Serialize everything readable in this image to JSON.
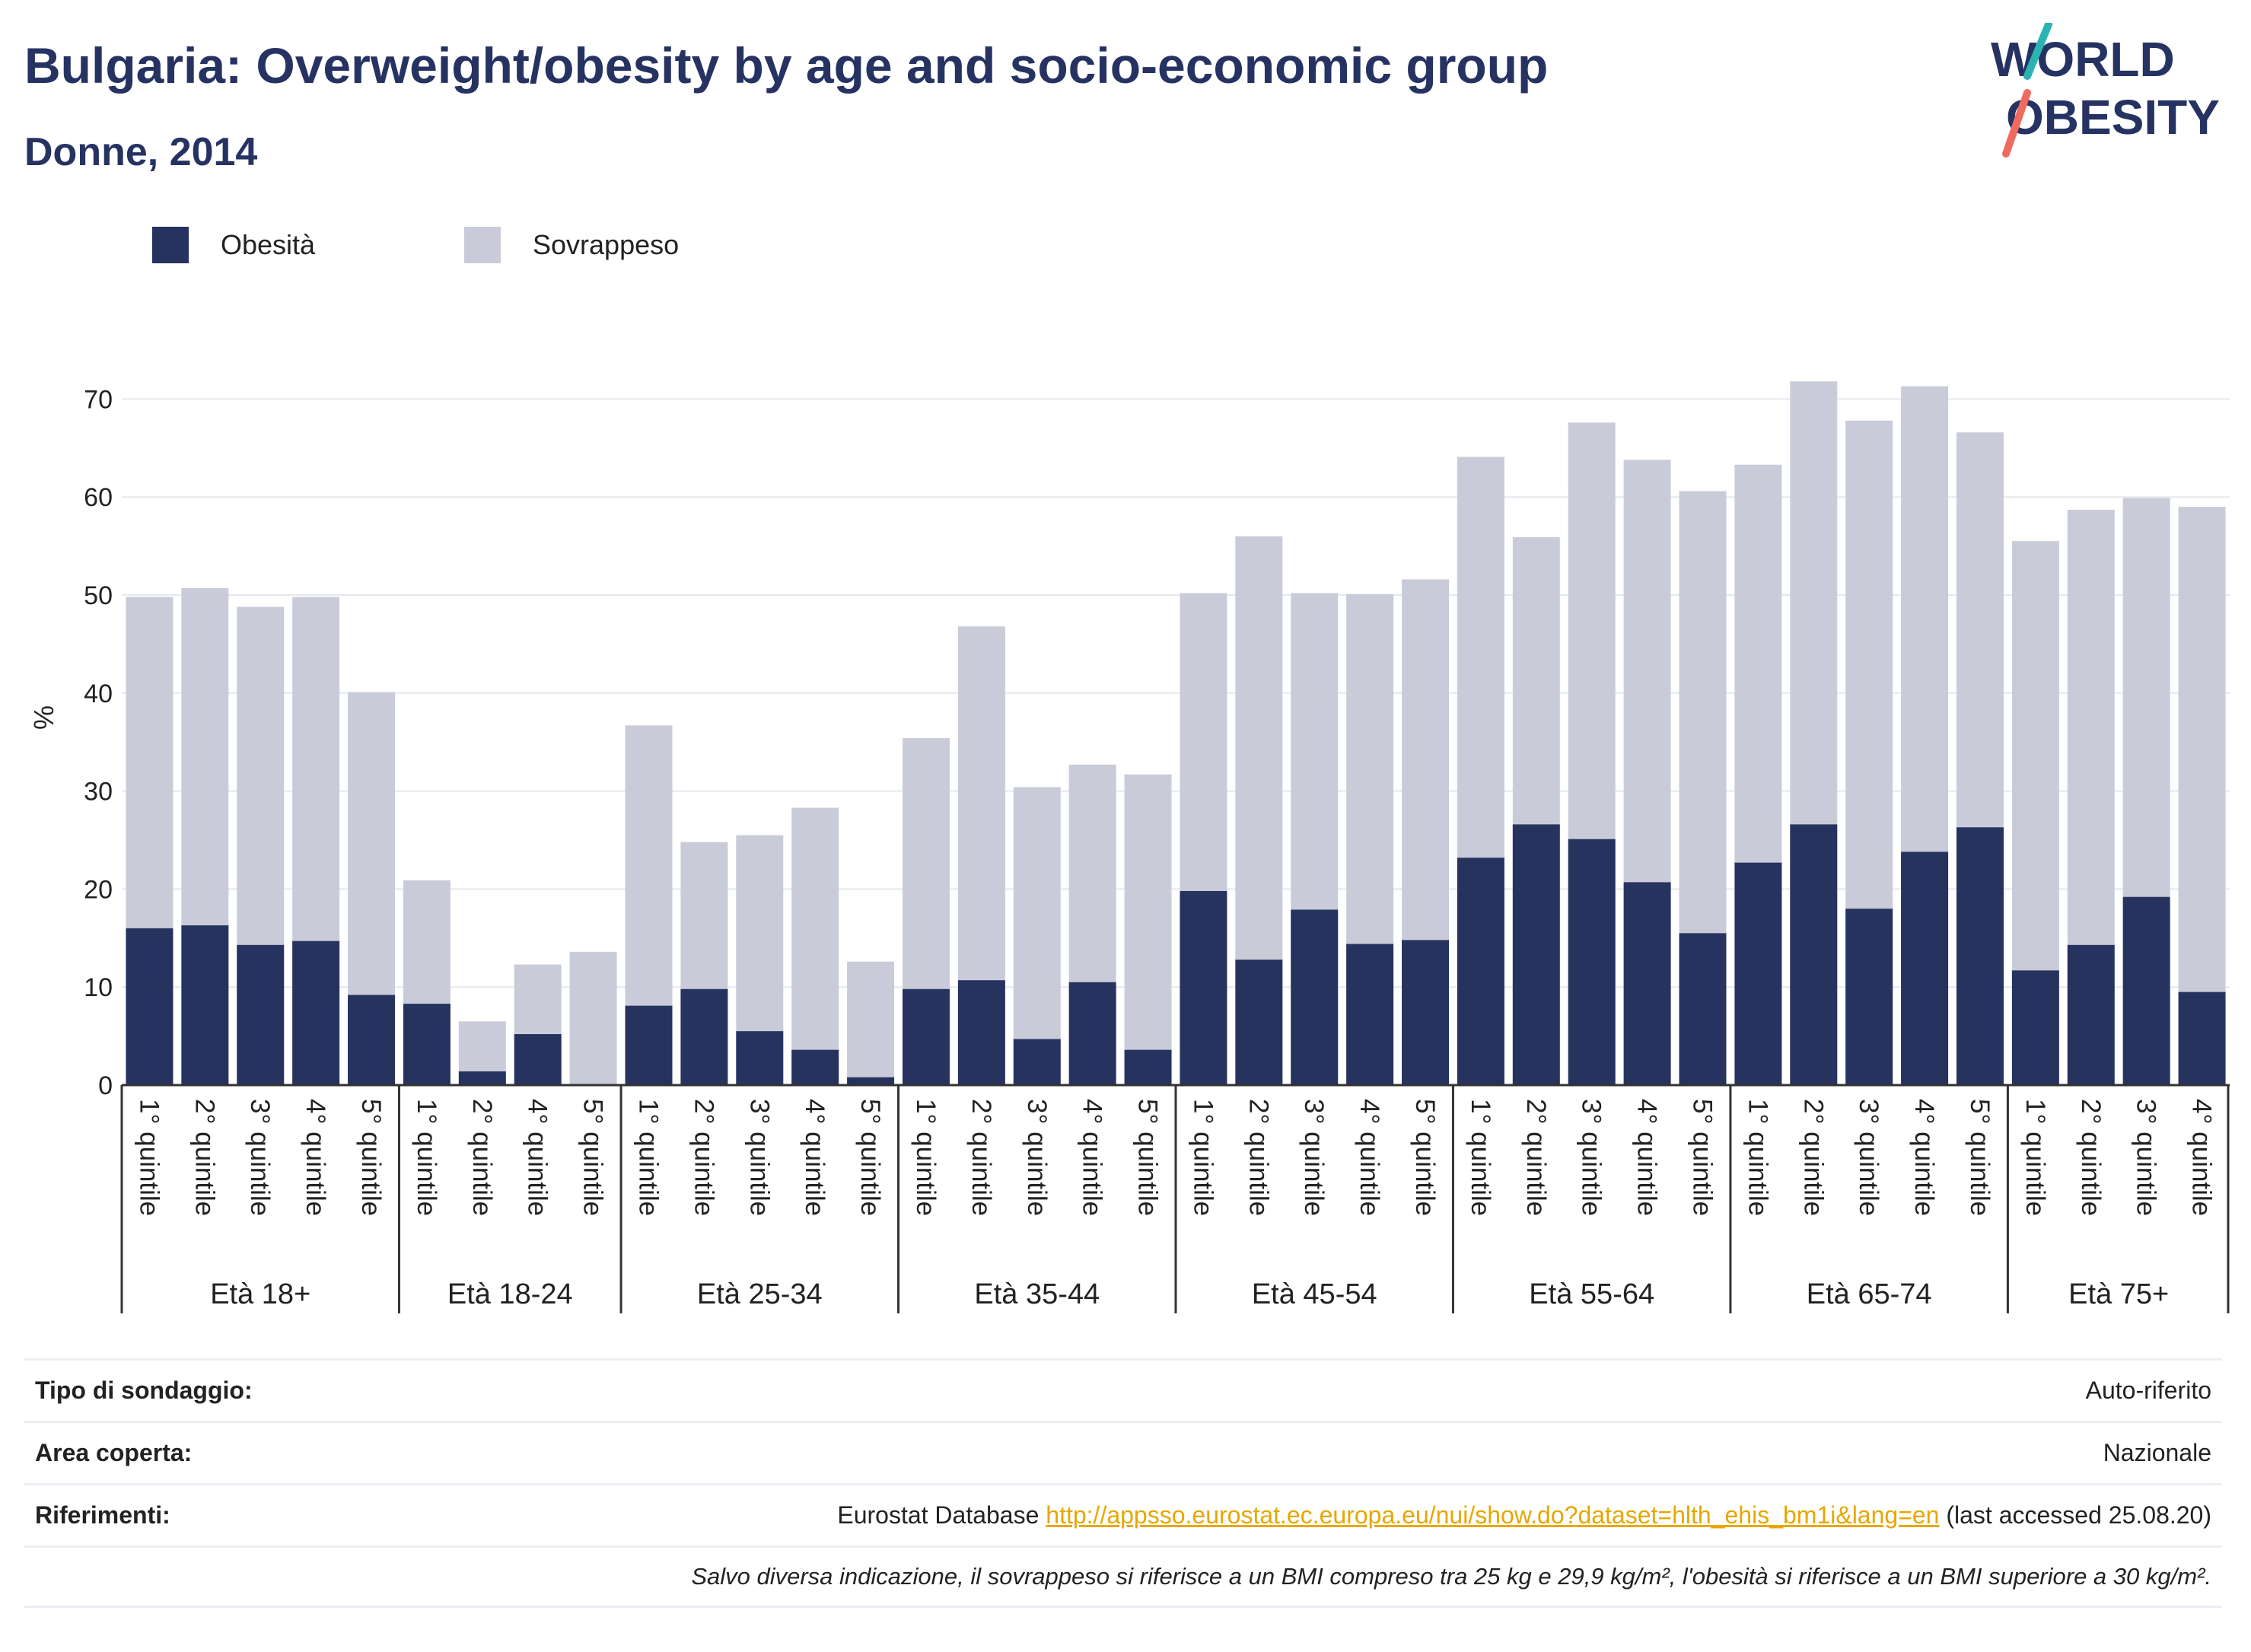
{
  "header": {
    "title": "Bulgaria: Overweight/obesity by age and socio-economic group",
    "subtitle": "Donne, 2014"
  },
  "logo": {
    "line1": "WORLD",
    "line2": "OBESITY",
    "colors": {
      "text": "#263362",
      "slash_top": "#2ab3b1",
      "slash_bottom": "#ef6b5f"
    }
  },
  "legend": [
    {
      "label": "Obesità",
      "color": "#27335f"
    },
    {
      "label": "Sovrappeso",
      "color": "#c9ccd8"
    }
  ],
  "chart_data": {
    "type": "bar",
    "stacked": true,
    "ylabel": "%",
    "ylim": [
      0,
      75
    ],
    "yticks": [
      0,
      10,
      20,
      30,
      40,
      50,
      60,
      70
    ],
    "grid": true,
    "legend_position": "top-left",
    "groups": [
      {
        "label": "Età 18+",
        "categories": [
          "1° quintile",
          "2° quintile",
          "3° quintile",
          "4° quintile",
          "5° quintile"
        ],
        "obesity": [
          16.0,
          16.3,
          14.3,
          14.7,
          9.2
        ],
        "total": [
          49.8,
          50.7,
          48.8,
          49.8,
          40.1
        ]
      },
      {
        "label": "Età 18-24",
        "categories": [
          "1° quintile",
          "2° quintile",
          "4° quintile",
          "5° quintile"
        ],
        "obesity": [
          8.3,
          1.4,
          5.2,
          0.0
        ],
        "total": [
          20.9,
          6.5,
          12.3,
          13.6
        ]
      },
      {
        "label": "Età 25-34",
        "categories": [
          "1° quintile",
          "2° quintile",
          "3° quintile",
          "4° quintile",
          "5° quintile"
        ],
        "obesity": [
          8.1,
          9.8,
          5.5,
          3.6,
          0.8
        ],
        "total": [
          36.7,
          24.8,
          25.5,
          28.3,
          12.6
        ]
      },
      {
        "label": "Età 35-44",
        "categories": [
          "1° quintile",
          "2° quintile",
          "3° quintile",
          "4° quintile",
          "5° quintile"
        ],
        "obesity": [
          9.8,
          10.7,
          4.7,
          10.5,
          3.6
        ],
        "total": [
          35.4,
          46.8,
          30.4,
          32.7,
          31.7
        ]
      },
      {
        "label": "Età 45-54",
        "categories": [
          "1° quintile",
          "2° quintile",
          "3° quintile",
          "4° quintile",
          "5° quintile"
        ],
        "obesity": [
          19.8,
          12.8,
          17.9,
          14.4,
          14.8
        ],
        "total": [
          50.2,
          56.0,
          50.2,
          50.1,
          51.6
        ]
      },
      {
        "label": "Età 55-64",
        "categories": [
          "1° quintile",
          "2° quintile",
          "3° quintile",
          "4° quintile",
          "5° quintile"
        ],
        "obesity": [
          23.2,
          26.6,
          25.1,
          20.7,
          15.5
        ],
        "total": [
          64.1,
          55.9,
          67.6,
          63.8,
          60.6
        ]
      },
      {
        "label": "Età 65-74",
        "categories": [
          "1° quintile",
          "2° quintile",
          "3° quintile",
          "4° quintile",
          "5° quintile"
        ],
        "obesity": [
          22.7,
          26.6,
          18.0,
          23.8,
          26.3
        ],
        "total": [
          63.3,
          71.8,
          67.8,
          71.3,
          66.6
        ]
      },
      {
        "label": "Età 75+",
        "categories": [
          "1° quintile",
          "2° quintile",
          "3° quintile",
          "4° quintile"
        ],
        "obesity": [
          11.7,
          14.3,
          19.2,
          9.5
        ],
        "total": [
          55.5,
          58.7,
          59.9,
          59.0
        ]
      }
    ]
  },
  "info": {
    "survey_label": "Tipo di sondaggio:",
    "survey_value": "Auto-riferito",
    "area_label": "Area coperta:",
    "area_value": "Nazionale",
    "refs_label": "Riferimenti:",
    "refs_prefix": "Eurostat Database",
    "refs_link": "http://appsso.eurostat.ec.europa.eu/nui/show.do?dataset=hlth_ehis_bm1i&lang=en",
    "refs_suffix": "(last accessed 25.08.20)",
    "note": "Salvo diversa indicazione, il sovrappeso si riferisce a un BMI compreso tra 25 kg e 29,9 kg/m², l'obesità si riferisce a un BMI superiore a 30 kg/m²."
  }
}
